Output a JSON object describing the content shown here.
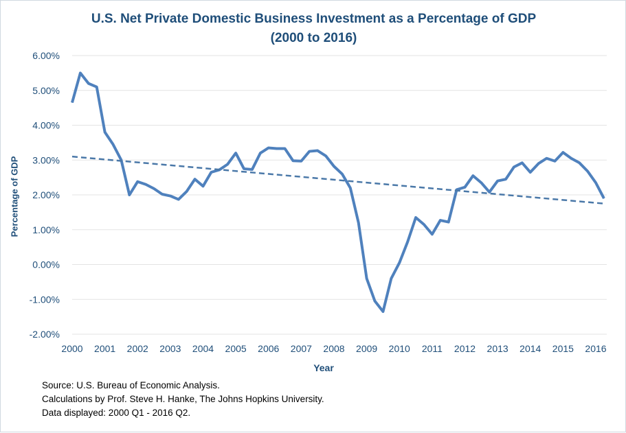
{
  "chart_data": {
    "type": "line",
    "title": "U.S. Net Private Domestic Business Investment as a Percentage of GDP",
    "subtitle": "(2000 to 2016)",
    "xlabel": "Year",
    "ylabel": "Percentage of GDP",
    "ylim": [
      -2,
      6
    ],
    "xlim": [
      2000,
      2016.25
    ],
    "yticks": [
      "-2.00%",
      "-1.00%",
      "0.00%",
      "1.00%",
      "2.00%",
      "3.00%",
      "4.00%",
      "5.00%",
      "6.00%"
    ],
    "xticks": [
      "2000",
      "2001",
      "2002",
      "2003",
      "2004",
      "2005",
      "2006",
      "2007",
      "2008",
      "2009",
      "2010",
      "2011",
      "2012",
      "2013",
      "2014",
      "2015",
      "2016"
    ],
    "grid": true,
    "line_color": "#4f81bd",
    "series": [
      {
        "values": [
          4.65,
          5.5,
          5.2,
          5.1,
          3.8,
          3.45,
          3.0,
          2.0,
          2.38,
          2.3,
          2.18,
          2.02,
          1.97,
          1.87,
          2.1,
          2.45,
          2.25,
          2.65,
          2.72,
          2.88,
          3.2,
          2.75,
          2.73,
          3.2,
          3.35,
          3.33,
          3.33,
          2.98,
          2.97,
          3.25,
          3.27,
          3.12,
          2.82,
          2.6,
          2.2,
          1.2,
          -0.4,
          -1.05,
          -1.35,
          -0.4,
          0.05,
          0.65,
          1.35,
          1.15,
          0.87,
          1.27,
          1.22,
          2.15,
          2.22,
          2.55,
          2.35,
          2.08,
          2.4,
          2.45,
          2.8,
          2.92,
          2.65,
          2.9,
          3.05,
          2.97,
          3.22,
          3.05,
          2.92,
          2.68,
          2.35,
          1.9
        ]
      },
      {
        "type": "trendline",
        "style": "dashed",
        "values_at_ends": [
          3.1,
          1.75
        ]
      }
    ]
  },
  "notes": [
    "Source: U.S. Bureau of Economic Analysis.",
    "Calculations by Prof. Steve H. Hanke, The Johns Hopkins University.",
    "Data displayed: 2000 Q1 - 2016 Q2."
  ]
}
